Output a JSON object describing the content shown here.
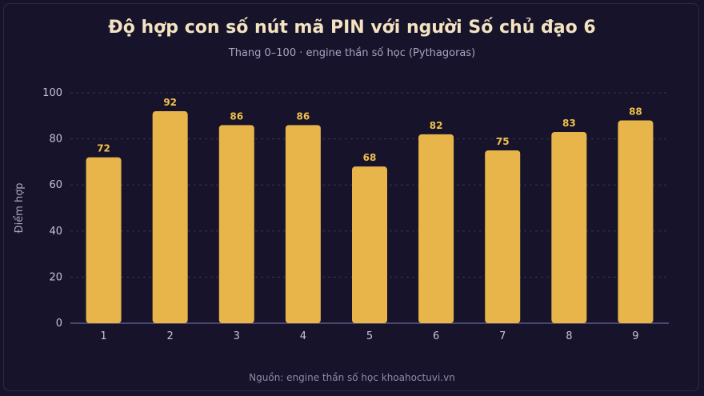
{
  "chart_data": {
    "type": "bar",
    "title": "Độ hợp con số nút mã PIN với người Số chủ đạo 6",
    "subtitle": "Thang 0–100 · engine thần số học (Pythagoras)",
    "source": "Nguồn: engine thần số học khoahoctuvi.vn",
    "xlabel": "",
    "ylabel": "Điểm hợp",
    "categories": [
      "1",
      "2",
      "3",
      "4",
      "5",
      "6",
      "7",
      "8",
      "9"
    ],
    "values": [
      72,
      92,
      86,
      86,
      68,
      82,
      75,
      83,
      88
    ],
    "ylim": [
      0,
      100
    ],
    "yticks": [
      0,
      20,
      40,
      60,
      80,
      100
    ],
    "grid": true,
    "legend": "none",
    "colors": {
      "bar": "#e8b54a",
      "value_label": "#f0c04a",
      "grid": "#3a3658",
      "axis": "#6b6690",
      "background": "#16132a"
    }
  }
}
